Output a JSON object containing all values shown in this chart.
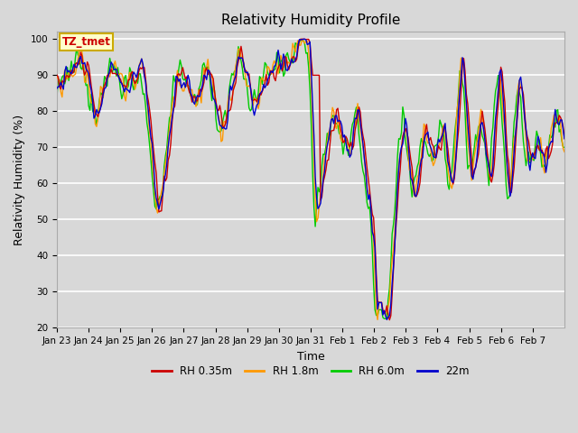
{
  "title": "Relativity Humidity Profile",
  "xlabel": "Time",
  "ylabel": "Relativity Humidity (%)",
  "ylim": [
    20,
    102
  ],
  "yticks": [
    20,
    30,
    40,
    50,
    60,
    70,
    80,
    90,
    100
  ],
  "colors": {
    "RH 0.35m": "#cc0000",
    "RH 1.8m": "#ff9900",
    "RH 6.0m": "#00cc00",
    "22m": "#0000cc"
  },
  "legend_labels": [
    "RH 0.35m",
    "RH 1.8m",
    "RH 6.0m",
    "22m"
  ],
  "annotation_text": "TZ_tmet",
  "annotation_color": "#cc0000",
  "annotation_bg": "#ffffcc",
  "annotation_edge": "#ccaa00",
  "bg_color": "#d8d8d8",
  "xtick_labels": [
    "Jan 23",
    "Jan 24",
    "Jan 25",
    "Jan 26",
    "Jan 27",
    "Jan 28",
    "Jan 29",
    "Jan 30",
    "Jan 31",
    "Feb 1",
    "Feb 2",
    "Feb 3",
    "Feb 4",
    "Feb 5",
    "Feb 6",
    "Feb 7"
  ],
  "title_fontsize": 11,
  "axis_fontsize": 9,
  "tick_fontsize": 7.5
}
